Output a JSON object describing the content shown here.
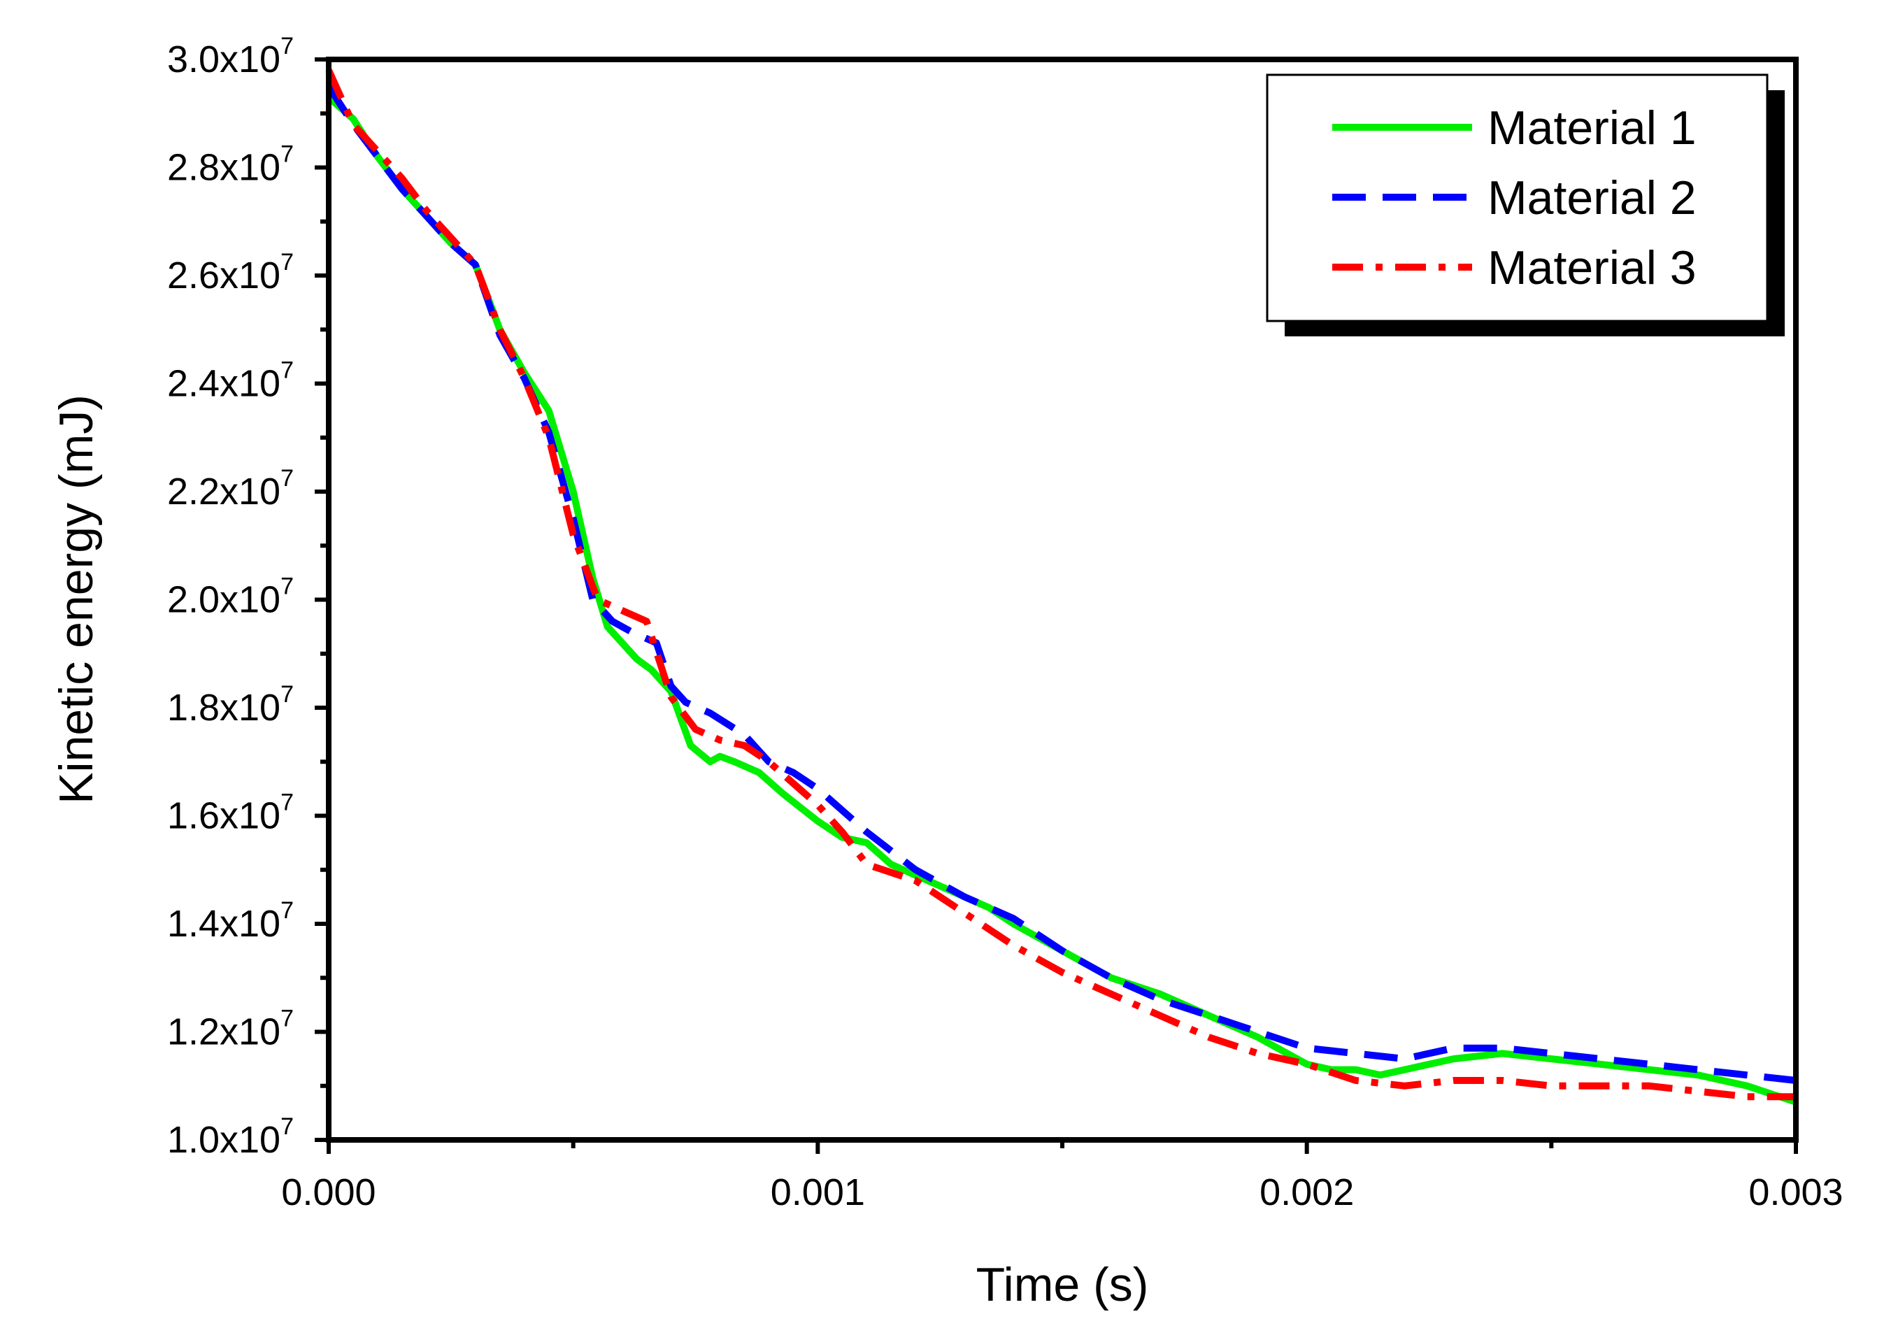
{
  "chart_data": {
    "type": "line",
    "xlabel": "Time (s)",
    "ylabel": "Kinetic energy (mJ)",
    "xlim": [
      0,
      0.003
    ],
    "ylim": [
      10000000,
      30000000
    ],
    "x_ticks": [
      {
        "value": 0.0,
        "label": "0.000"
      },
      {
        "value": 0.001,
        "label": "0.001"
      },
      {
        "value": 0.002,
        "label": "0.002"
      },
      {
        "value": 0.003,
        "label": "0.003"
      }
    ],
    "y_ticks": [
      {
        "value": 10000000,
        "mantissa": "1.0x10",
        "exp": "7"
      },
      {
        "value": 12000000,
        "mantissa": "1.2x10",
        "exp": "7"
      },
      {
        "value": 14000000,
        "mantissa": "1.4x10",
        "exp": "7"
      },
      {
        "value": 16000000,
        "mantissa": "1.6x10",
        "exp": "7"
      },
      {
        "value": 18000000,
        "mantissa": "1.8x10",
        "exp": "7"
      },
      {
        "value": 20000000,
        "mantissa": "2.0x10",
        "exp": "7"
      },
      {
        "value": 22000000,
        "mantissa": "2.2x10",
        "exp": "7"
      },
      {
        "value": 24000000,
        "mantissa": "2.4x10",
        "exp": "7"
      },
      {
        "value": 26000000,
        "mantissa": "2.6x10",
        "exp": "7"
      },
      {
        "value": 28000000,
        "mantissa": "2.8x10",
        "exp": "7"
      },
      {
        "value": 30000000,
        "mantissa": "3.0x10",
        "exp": "7"
      }
    ],
    "grid": false,
    "legend_position": "top-right",
    "series": [
      {
        "name": "Material 1",
        "color": "#00ee00",
        "dash": "solid",
        "x": [
          0,
          5e-05,
          0.0001,
          0.00015,
          0.0002,
          0.00025,
          0.0003,
          0.00035,
          0.0004,
          0.00045,
          0.0005,
          0.00054,
          0.00057,
          0.00063,
          0.00066,
          0.0007,
          0.00074,
          0.00078,
          0.0008,
          0.00083,
          0.00088,
          0.00093,
          0.001,
          0.00105,
          0.0011,
          0.00115,
          0.0012,
          0.00125,
          0.0013,
          0.00135,
          0.0014,
          0.0015,
          0.0016,
          0.0017,
          0.0018,
          0.0019,
          0.002,
          0.00205,
          0.0021,
          0.00215,
          0.0022,
          0.0023,
          0.0024,
          0.0025,
          0.0026,
          0.0027,
          0.0028,
          0.0029,
          0.003
        ],
        "y": [
          29300000,
          28900000,
          28200000,
          27600000,
          27100000,
          26600000,
          26200000,
          25000000,
          24200000,
          23500000,
          22000000,
          20400000,
          19500000,
          18900000,
          18700000,
          18300000,
          17300000,
          17000000,
          17100000,
          17000000,
          16800000,
          16400000,
          15900000,
          15600000,
          15500000,
          15100000,
          14900000,
          14700000,
          14500000,
          14300000,
          14000000,
          13500000,
          13000000,
          12700000,
          12300000,
          11900000,
          11400000,
          11300000,
          11300000,
          11200000,
          11300000,
          11500000,
          11600000,
          11500000,
          11400000,
          11300000,
          11200000,
          11000000,
          10700000
        ]
      },
      {
        "name": "Material 2",
        "color": "#0000ff",
        "dash": "dashed",
        "x": [
          0,
          5e-05,
          0.0001,
          0.00015,
          0.0002,
          0.00025,
          0.0003,
          0.00035,
          0.0004,
          0.00045,
          0.0005,
          0.00054,
          0.00058,
          0.00062,
          0.00067,
          0.0007,
          0.00073,
          0.00078,
          0.00085,
          0.0009,
          0.00095,
          0.001,
          0.0011,
          0.0012,
          0.0013,
          0.0014,
          0.0015,
          0.0016,
          0.0017,
          0.0018,
          0.0019,
          0.002,
          0.0021,
          0.0022,
          0.0023,
          0.0024,
          0.0025,
          0.0026,
          0.0027,
          0.0028,
          0.0029,
          0.003
        ],
        "y": [
          29500000,
          28800000,
          28200000,
          27600000,
          27100000,
          26600000,
          26200000,
          24900000,
          24100000,
          23100000,
          21500000,
          20000000,
          19600000,
          19400000,
          19200000,
          18400000,
          18100000,
          17900000,
          17500000,
          17000000,
          16800000,
          16500000,
          15700000,
          15000000,
          14500000,
          14100000,
          13500000,
          13000000,
          12600000,
          12300000,
          12000000,
          11700000,
          11600000,
          11500000,
          11700000,
          11700000,
          11600000,
          11500000,
          11400000,
          11300000,
          11200000,
          11100000
        ]
      },
      {
        "name": "Material 3",
        "color": "#ff0000",
        "dash": "dash-dot",
        "x": [
          0,
          5e-05,
          0.0001,
          0.00015,
          0.0002,
          0.00025,
          0.0003,
          0.00035,
          0.0004,
          0.00045,
          0.0005,
          0.00055,
          0.0006,
          0.00065,
          0.0007,
          0.00075,
          0.0008,
          0.00085,
          0.0009,
          0.00095,
          0.001,
          0.00105,
          0.0011,
          0.0012,
          0.0013,
          0.0014,
          0.0015,
          0.0016,
          0.0017,
          0.0018,
          0.0019,
          0.002,
          0.0021,
          0.0022,
          0.0023,
          0.0024,
          0.0025,
          0.0026,
          0.0027,
          0.0028,
          0.0029,
          0.003
        ],
        "y": [
          29800000,
          28800000,
          28300000,
          27800000,
          27200000,
          26700000,
          26200000,
          25000000,
          24100000,
          23000000,
          21200000,
          20000000,
          19800000,
          19600000,
          18200000,
          17600000,
          17400000,
          17300000,
          17000000,
          16600000,
          16200000,
          15700000,
          15100000,
          14800000,
          14200000,
          13600000,
          13100000,
          12700000,
          12300000,
          11900000,
          11600000,
          11400000,
          11100000,
          11000000,
          11100000,
          11100000,
          11000000,
          11000000,
          11000000,
          10900000,
          10800000,
          10800000
        ]
      }
    ]
  }
}
